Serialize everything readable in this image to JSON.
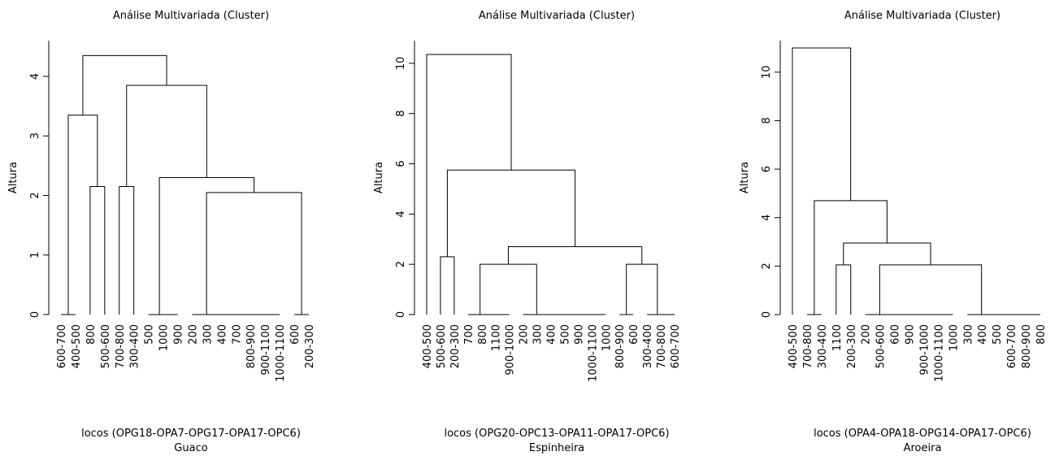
{
  "chart_data": [
    {
      "type": "dendrogram",
      "title": "Análise Multivariada (Cluster)",
      "ylabel": "Altura",
      "xlabel": "locos (OPG18-OPA7-OPG17-OPA17-OPC6)",
      "subtitle": "Guaco",
      "ylim": [
        0,
        4.6
      ],
      "yticks": [
        0,
        1,
        2,
        3,
        4
      ],
      "color": "#000000",
      "tree": {
        "height": 4.35,
        "children": [
          {
            "height": 3.35,
            "children": [
              {
                "height": 0,
                "children": [
                  "600-700",
                  "400-500"
                ]
              },
              {
                "height": 2.15,
                "children": [
                  "800",
                  "500-600"
                ]
              }
            ]
          },
          {
            "height": 3.85,
            "children": [
              {
                "height": 2.15,
                "children": [
                  "700-800",
                  "300-400"
                ]
              },
              {
                "height": 2.3,
                "children": [
                  {
                    "height": 0,
                    "children": [
                      "500",
                      {
                        "height": 0,
                        "children": [
                          "1000",
                          "900"
                        ]
                      }
                    ]
                  },
                  {
                    "height": 2.05,
                    "children": [
                      {
                        "height": 0,
                        "children": [
                          "200",
                          {
                            "height": 0,
                            "children": [
                              "300",
                              {
                                "height": 0,
                                "children": [
                                  "400",
                                  {
                                    "height": 0,
                                    "children": [
                                      "700",
                                      {
                                        "height": 0,
                                        "children": [
                                          "800-900",
                                          {
                                            "height": 0,
                                            "children": [
                                              "900-1100",
                                              "1000-1100"
                                            ]
                                          }
                                        ]
                                      }
                                    ]
                                  }
                                ]
                              }
                            ]
                          }
                        ]
                      },
                      {
                        "height": 0,
                        "children": [
                          "600",
                          "200-300"
                        ]
                      }
                    ]
                  }
                ]
              }
            ]
          }
        ]
      }
    },
    {
      "type": "dendrogram",
      "title": "Análise Multivariada (Cluster)",
      "ylabel": "Altura",
      "xlabel": "locos (OPG20-OPC13-OPA11-OPA17-OPC6)",
      "subtitle": "Espinheira",
      "ylim": [
        0,
        10.9
      ],
      "yticks": [
        0,
        2,
        4,
        6,
        8,
        10
      ],
      "color": "#000000",
      "tree": {
        "height": 10.35,
        "children": [
          "400-500",
          {
            "height": 5.75,
            "children": [
              {
                "height": 2.3,
                "children": [
                  "500-600",
                  "200-300"
                ]
              },
              {
                "height": 2.7,
                "children": [
                  {
                    "height": 2,
                    "children": [
                      {
                        "height": 0,
                        "children": [
                          "700",
                          {
                            "height": 0,
                            "children": [
                              "800",
                              {
                                "height": 0,
                                "children": [
                                  "1100",
                                  "900-1000"
                                ]
                              }
                            ]
                          }
                        ]
                      },
                      {
                        "height": 0,
                        "children": [
                          "200",
                          {
                            "height": 0,
                            "children": [
                              "300",
                              {
                                "height": 0,
                                "children": [
                                  "400",
                                  {
                                    "height": 0,
                                    "children": [
                                      "500",
                                      {
                                        "height": 0,
                                        "children": [
                                          "900",
                                          {
                                            "height": 0,
                                            "children": [
                                              "1000-1100",
                                              "1000"
                                            ]
                                          }
                                        ]
                                      }
                                    ]
                                  }
                                ]
                              }
                            ]
                          }
                        ]
                      }
                    ]
                  },
                  {
                    "height": 2,
                    "children": [
                      {
                        "height": 0,
                        "children": [
                          "800-900",
                          "600"
                        ]
                      },
                      {
                        "height": 0,
                        "children": [
                          "300-400",
                          {
                            "height": 0,
                            "children": [
                              "700-800",
                              "600-700"
                            ]
                          }
                        ]
                      }
                    ]
                  }
                ]
              }
            ]
          }
        ]
      }
    },
    {
      "type": "dendrogram",
      "title": "Análise Multivariada (Cluster)",
      "ylabel": "Altura",
      "xlabel": "locos (OPA4-OPA18-OPG14-OPA17-OPC6)",
      "subtitle": "Aroeira",
      "ylim": [
        0,
        11.3
      ],
      "yticks": [
        0,
        2,
        4,
        6,
        8,
        10
      ],
      "color": "#000000",
      "tree": {
        "height": 11,
        "children": [
          "400-500",
          {
            "height": 4.7,
            "children": [
              {
                "height": 0,
                "children": [
                  "700-800",
                  "300-400"
                ]
              },
              {
                "height": 2.95,
                "children": [
                  {
                    "height": 2.05,
                    "children": [
                      "1100",
                      "200-300"
                    ]
                  },
                  {
                    "height": 2.05,
                    "children": [
                      {
                        "height": 0,
                        "children": [
                          "200",
                          {
                            "height": 0,
                            "children": [
                              "500-600",
                              {
                                "height": 0,
                                "children": [
                                  "600",
                                  {
                                    "height": 0,
                                    "children": [
                                      "900",
                                      {
                                        "height": 0,
                                        "children": [
                                          "900-1000",
                                          {
                                            "height": 0,
                                            "children": [
                                              "1000-1100",
                                              "1000"
                                            ]
                                          }
                                        ]
                                      }
                                    ]
                                  }
                                ]
                              }
                            ]
                          }
                        ]
                      },
                      {
                        "height": 0,
                        "children": [
                          "300",
                          {
                            "height": 0,
                            "children": [
                              "400",
                              {
                                "height": 0,
                                "children": [
                                  "500",
                                  {
                                    "height": 0,
                                    "children": [
                                      "600-700",
                                      {
                                        "height": 0,
                                        "children": [
                                          "800-900",
                                          "800"
                                        ]
                                      }
                                    ]
                                  }
                                ]
                              }
                            ]
                          }
                        ]
                      }
                    ]
                  }
                ]
              }
            ]
          }
        ]
      }
    }
  ]
}
